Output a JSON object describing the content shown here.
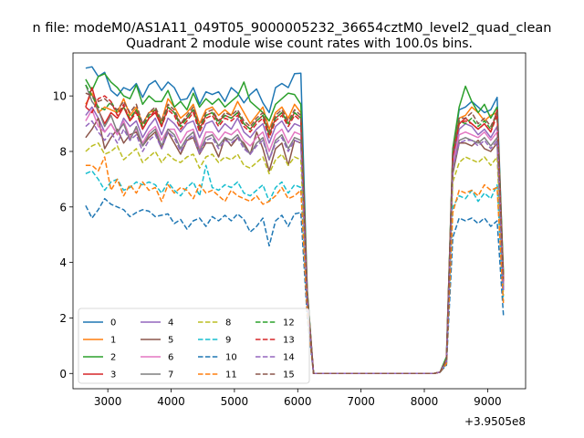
{
  "suptitle": "n file: modeM0/AS1A11_049T05_9000005232_36654cztM0_level2_quad_clean",
  "chart_data": {
    "type": "line",
    "title": "Quadrant 2 module wise count rates with 100.0s bins.",
    "xlabel": "",
    "ylabel": "",
    "x_offset_label": "+3.9505e8",
    "xlim": [
      2450,
      9600
    ],
    "ylim": [
      -0.55,
      11.55
    ],
    "xticks": [
      3000,
      4000,
      5000,
      6000,
      7000,
      8000,
      9000
    ],
    "yticks": [
      0,
      2,
      4,
      6,
      8,
      10
    ],
    "grid": false,
    "legend_position": "lower-left",
    "legend_columns": 4,
    "x": [
      2650,
      2750,
      2850,
      2950,
      3050,
      3150,
      3250,
      3350,
      3450,
      3550,
      3650,
      3750,
      3850,
      3950,
      4050,
      4150,
      4250,
      4350,
      4450,
      4550,
      4650,
      4750,
      4850,
      4950,
      5050,
      5150,
      5250,
      5350,
      5450,
      5550,
      5650,
      5750,
      5850,
      5950,
      6050,
      6150,
      6250,
      6350,
      6450,
      6550,
      6650,
      6750,
      6850,
      6950,
      7050,
      7150,
      7250,
      7350,
      7450,
      7550,
      7650,
      7750,
      7850,
      7950,
      8050,
      8150,
      8250,
      8350,
      8450,
      8550,
      8650,
      8750,
      8850,
      8950,
      9050,
      9150,
      9250
    ],
    "series": [
      {
        "name": "0",
        "color": "#1f77b4",
        "dash": "solid",
        "values": [
          11.0,
          11.05,
          10.7,
          10.85,
          10.2,
          10.0,
          10.3,
          10.2,
          10.45,
          9.95,
          10.4,
          10.55,
          10.2,
          10.5,
          10.3,
          9.85,
          9.9,
          10.3,
          9.7,
          10.15,
          10.05,
          10.15,
          9.8,
          10.3,
          10.1,
          9.75,
          10.05,
          10.25,
          9.75,
          9.4,
          10.3,
          10.45,
          10.3,
          10.8,
          10.82,
          3.0,
          0.0,
          0.0,
          0.0,
          0.0,
          0.0,
          0.0,
          0.0,
          0.0,
          0.0,
          0.0,
          0.0,
          0.0,
          0.0,
          0.0,
          0.0,
          0.0,
          0.0,
          0.0,
          0.0,
          0.0,
          0.05,
          0.6,
          8.0,
          9.5,
          9.6,
          9.8,
          9.6,
          9.4,
          9.5,
          9.95,
          3.5
        ]
      },
      {
        "name": "1",
        "color": "#ff7f0e",
        "dash": "solid",
        "values": [
          9.7,
          10.1,
          9.4,
          9.6,
          9.5,
          9.4,
          9.9,
          9.3,
          9.6,
          9.0,
          9.4,
          9.5,
          9.1,
          9.9,
          9.6,
          9.2,
          9.4,
          9.7,
          9.0,
          9.5,
          9.6,
          9.3,
          9.5,
          9.3,
          9.8,
          9.4,
          9.0,
          9.3,
          9.6,
          8.8,
          9.4,
          9.6,
          9.2,
          9.7,
          9.4,
          2.9,
          0.0,
          0.0,
          0.0,
          0.0,
          0.0,
          0.0,
          0.0,
          0.0,
          0.0,
          0.0,
          0.0,
          0.0,
          0.0,
          0.0,
          0.0,
          0.0,
          0.0,
          0.0,
          0.0,
          0.0,
          0.05,
          0.5,
          7.9,
          9.2,
          9.3,
          9.6,
          9.4,
          9.1,
          9.3,
          9.4,
          3.4
        ]
      },
      {
        "name": "2",
        "color": "#2ca02c",
        "dash": "solid",
        "values": [
          10.6,
          10.2,
          10.7,
          10.8,
          10.5,
          10.3,
          10.0,
          9.9,
          10.4,
          9.7,
          10.0,
          9.8,
          9.8,
          10.2,
          9.6,
          9.8,
          9.5,
          10.1,
          9.6,
          9.9,
          9.7,
          9.9,
          9.6,
          9.8,
          10.0,
          10.5,
          9.8,
          9.6,
          9.4,
          9.1,
          9.7,
          9.9,
          10.1,
          10.05,
          9.7,
          3.0,
          0.0,
          0.0,
          0.0,
          0.0,
          0.0,
          0.0,
          0.0,
          0.0,
          0.0,
          0.0,
          0.0,
          0.0,
          0.0,
          0.0,
          0.0,
          0.0,
          0.0,
          0.0,
          0.0,
          0.0,
          0.05,
          0.6,
          8.1,
          9.6,
          10.35,
          9.8,
          9.4,
          9.7,
          9.2,
          9.6,
          3.6
        ]
      },
      {
        "name": "3",
        "color": "#d62728",
        "dash": "solid",
        "values": [
          9.6,
          10.3,
          9.5,
          9.0,
          9.4,
          9.2,
          9.6,
          9.1,
          9.5,
          8.8,
          9.2,
          9.4,
          8.9,
          9.6,
          9.4,
          9.0,
          9.2,
          9.5,
          8.8,
          9.3,
          9.4,
          9.1,
          9.3,
          9.2,
          9.4,
          9.0,
          8.8,
          9.1,
          9.3,
          8.6,
          9.2,
          9.4,
          9.0,
          9.4,
          9.2,
          2.8,
          0.0,
          0.0,
          0.0,
          0.0,
          0.0,
          0.0,
          0.0,
          0.0,
          0.0,
          0.0,
          0.0,
          0.0,
          0.0,
          0.0,
          0.0,
          0.0,
          0.0,
          0.0,
          0.0,
          0.0,
          0.05,
          0.5,
          7.8,
          9.0,
          9.2,
          9.0,
          8.8,
          9.0,
          8.7,
          9.5,
          3.3
        ]
      },
      {
        "name": "4",
        "color": "#9467bd",
        "dash": "solid",
        "values": [
          9.3,
          9.6,
          9.2,
          8.7,
          9.0,
          8.6,
          9.2,
          8.9,
          9.1,
          8.5,
          8.9,
          9.2,
          8.6,
          9.2,
          9.0,
          8.7,
          9.0,
          9.1,
          8.5,
          9.0,
          9.1,
          8.7,
          9.0,
          8.8,
          9.2,
          8.7,
          8.5,
          8.8,
          9.0,
          8.3,
          8.9,
          9.1,
          8.7,
          9.0,
          8.9,
          2.7,
          0.0,
          0.0,
          0.0,
          0.0,
          0.0,
          0.0,
          0.0,
          0.0,
          0.0,
          0.0,
          0.0,
          0.0,
          0.0,
          0.0,
          0.0,
          0.0,
          0.0,
          0.0,
          0.0,
          0.0,
          0.05,
          0.5,
          7.6,
          8.8,
          9.0,
          8.9,
          8.6,
          8.8,
          8.5,
          8.9,
          3.2
        ]
      },
      {
        "name": "5",
        "color": "#8c564b",
        "dash": "solid",
        "values": [
          8.5,
          8.8,
          9.2,
          8.1,
          8.5,
          8.8,
          8.3,
          8.6,
          8.7,
          8.2,
          8.5,
          8.7,
          8.1,
          8.7,
          8.3,
          7.9,
          8.4,
          8.5,
          7.9,
          8.3,
          8.3,
          7.8,
          8.5,
          8.2,
          8.5,
          8.3,
          7.9,
          8.7,
          8.1,
          7.3,
          8.1,
          8.3,
          7.5,
          8.4,
          8.3,
          2.6,
          0.0,
          0.0,
          0.0,
          0.0,
          0.0,
          0.0,
          0.0,
          0.0,
          0.0,
          0.0,
          0.0,
          0.0,
          0.0,
          0.0,
          0.0,
          0.0,
          0.0,
          0.0,
          0.0,
          0.0,
          0.05,
          0.4,
          7.2,
          8.3,
          8.3,
          8.2,
          8.4,
          8.1,
          8.0,
          8.3,
          3.0
        ]
      },
      {
        "name": "6",
        "color": "#e377c2",
        "dash": "solid",
        "values": [
          9.1,
          9.5,
          8.9,
          8.7,
          9.0,
          8.6,
          9.1,
          8.5,
          8.8,
          8.3,
          8.7,
          8.9,
          8.4,
          8.8,
          8.8,
          8.3,
          8.7,
          8.8,
          8.1,
          8.7,
          8.7,
          8.4,
          8.7,
          8.6,
          8.8,
          8.4,
          8.2,
          8.5,
          8.7,
          8.0,
          8.6,
          8.8,
          8.3,
          8.7,
          8.6,
          2.7,
          0.0,
          0.0,
          0.0,
          0.0,
          0.0,
          0.0,
          0.0,
          0.0,
          0.0,
          0.0,
          0.0,
          0.0,
          0.0,
          0.0,
          0.0,
          0.0,
          0.0,
          0.0,
          0.0,
          0.0,
          0.05,
          0.45,
          7.5,
          8.6,
          8.7,
          8.6,
          8.5,
          8.7,
          8.4,
          8.7,
          3.2
        ]
      },
      {
        "name": "7",
        "color": "#7f7f7f",
        "dash": "solid",
        "values": [
          10.4,
          9.8,
          9.5,
          8.9,
          9.3,
          8.7,
          9.0,
          8.4,
          8.9,
          8.2,
          8.6,
          8.8,
          8.2,
          8.8,
          8.6,
          8.1,
          8.5,
          8.7,
          8.0,
          8.5,
          8.6,
          8.2,
          8.5,
          8.4,
          8.6,
          8.2,
          7.9,
          8.3,
          8.5,
          7.7,
          8.4,
          8.6,
          8.1,
          8.5,
          8.4,
          2.7,
          0.0,
          0.0,
          0.0,
          0.0,
          0.0,
          0.0,
          0.0,
          0.0,
          0.0,
          0.0,
          0.0,
          0.0,
          0.0,
          0.0,
          0.0,
          0.0,
          0.0,
          0.0,
          0.0,
          0.0,
          0.05,
          0.45,
          7.3,
          8.4,
          8.5,
          8.4,
          8.3,
          8.5,
          8.2,
          8.5,
          3.1
        ]
      },
      {
        "name": "8",
        "color": "#bcbd22",
        "dash": "dashed",
        "values": [
          8.0,
          8.2,
          8.3,
          7.9,
          8.0,
          8.2,
          7.7,
          7.9,
          8.1,
          7.6,
          7.8,
          8.0,
          7.6,
          7.9,
          7.7,
          7.6,
          7.8,
          7.9,
          7.4,
          7.8,
          7.9,
          7.6,
          7.8,
          7.7,
          7.9,
          7.5,
          7.4,
          7.6,
          7.8,
          7.2,
          7.7,
          7.9,
          7.5,
          7.8,
          7.7,
          2.4,
          0.0,
          0.0,
          0.0,
          0.0,
          0.0,
          0.0,
          0.0,
          0.0,
          0.0,
          0.0,
          0.0,
          0.0,
          0.0,
          0.0,
          0.0,
          0.0,
          0.0,
          0.0,
          0.0,
          0.0,
          0.05,
          0.4,
          6.9,
          7.6,
          7.8,
          7.7,
          7.6,
          7.8,
          7.5,
          7.8,
          2.8
        ]
      },
      {
        "name": "9",
        "color": "#17becf",
        "dash": "dashed",
        "values": [
          7.2,
          7.3,
          7.0,
          6.6,
          6.9,
          7.0,
          6.6,
          6.7,
          6.9,
          6.8,
          6.9,
          6.8,
          6.5,
          6.9,
          6.6,
          6.4,
          6.7,
          6.9,
          6.4,
          7.5,
          6.7,
          6.6,
          6.8,
          6.7,
          6.9,
          6.5,
          6.4,
          6.6,
          6.8,
          6.2,
          6.7,
          6.9,
          6.5,
          6.8,
          6.7,
          2.3,
          0.0,
          0.0,
          0.0,
          0.0,
          0.0,
          0.0,
          0.0,
          0.0,
          0.0,
          0.0,
          0.0,
          0.0,
          0.0,
          0.0,
          0.0,
          0.0,
          0.0,
          0.0,
          0.0,
          0.0,
          0.05,
          0.35,
          6.0,
          6.4,
          6.3,
          6.6,
          6.2,
          6.5,
          6.3,
          6.8,
          2.6
        ]
      },
      {
        "name": "10",
        "color": "#1f77b4",
        "dash": "dashed",
        "values": [
          6.05,
          5.6,
          5.9,
          6.3,
          6.1,
          6.0,
          5.9,
          5.65,
          5.8,
          5.9,
          5.85,
          5.65,
          5.7,
          5.75,
          5.4,
          5.55,
          5.2,
          5.5,
          5.6,
          5.3,
          5.65,
          5.5,
          5.7,
          5.5,
          5.75,
          5.55,
          5.1,
          5.3,
          5.6,
          4.6,
          5.5,
          5.7,
          5.3,
          5.75,
          5.8,
          2.0,
          0.0,
          0.0,
          0.0,
          0.0,
          0.0,
          0.0,
          0.0,
          0.0,
          0.0,
          0.0,
          0.0,
          0.0,
          0.0,
          0.0,
          0.0,
          0.0,
          0.0,
          0.0,
          0.0,
          0.0,
          0.05,
          0.3,
          4.9,
          5.6,
          5.5,
          5.6,
          5.4,
          5.6,
          5.3,
          5.5,
          2.1
        ]
      },
      {
        "name": "11",
        "color": "#ff7f0e",
        "dash": "dashed",
        "values": [
          7.5,
          7.5,
          7.3,
          7.8,
          6.6,
          7.0,
          6.4,
          6.8,
          6.5,
          6.9,
          6.6,
          6.7,
          6.2,
          6.8,
          6.5,
          6.7,
          6.6,
          6.3,
          6.8,
          6.5,
          6.6,
          6.4,
          6.2,
          6.6,
          6.4,
          6.3,
          6.2,
          6.4,
          6.1,
          6.2,
          6.4,
          6.7,
          6.3,
          6.4,
          6.6,
          2.2,
          0.0,
          0.0,
          0.0,
          0.0,
          0.0,
          0.0,
          0.0,
          0.0,
          0.0,
          0.0,
          0.0,
          0.0,
          0.0,
          0.0,
          0.0,
          0.0,
          0.0,
          0.0,
          0.0,
          0.0,
          0.05,
          0.35,
          5.8,
          6.6,
          6.5,
          6.6,
          6.4,
          6.8,
          6.6,
          6.7,
          2.5
        ]
      },
      {
        "name": "12",
        "color": "#2ca02c",
        "dash": "dashed",
        "values": [
          10.4,
          10.0,
          9.6,
          9.5,
          9.8,
          9.4,
          9.6,
          9.2,
          9.5,
          8.9,
          9.3,
          9.5,
          9.0,
          9.6,
          9.4,
          8.9,
          9.2,
          9.5,
          8.8,
          9.3,
          9.4,
          9.0,
          9.3,
          9.2,
          9.4,
          9.0,
          8.8,
          9.1,
          9.3,
          8.6,
          9.2,
          9.4,
          9.0,
          9.4,
          9.2,
          2.8,
          0.0,
          0.0,
          0.0,
          0.0,
          0.0,
          0.0,
          0.0,
          0.0,
          0.0,
          0.0,
          0.0,
          0.0,
          0.0,
          0.0,
          0.0,
          0.0,
          0.0,
          0.0,
          0.0,
          0.0,
          0.05,
          0.5,
          7.9,
          9.1,
          9.0,
          9.2,
          8.9,
          9.1,
          8.8,
          9.4,
          3.4
        ]
      },
      {
        "name": "13",
        "color": "#d62728",
        "dash": "dashed",
        "values": [
          9.6,
          9.4,
          9.9,
          10.0,
          9.8,
          9.3,
          9.7,
          9.1,
          9.4,
          8.8,
          9.2,
          9.5,
          8.9,
          9.5,
          9.3,
          8.8,
          9.1,
          9.4,
          8.7,
          9.2,
          9.3,
          8.9,
          9.2,
          9.1,
          9.3,
          8.9,
          8.7,
          9.0,
          9.2,
          8.5,
          9.1,
          9.3,
          8.9,
          9.3,
          9.1,
          2.8,
          0.0,
          0.0,
          0.0,
          0.0,
          0.0,
          0.0,
          0.0,
          0.0,
          0.0,
          0.0,
          0.0,
          0.0,
          0.0,
          0.0,
          0.0,
          0.0,
          0.0,
          0.0,
          0.0,
          0.0,
          0.05,
          0.5,
          7.8,
          9.0,
          9.1,
          9.0,
          8.8,
          9.0,
          8.7,
          9.3,
          3.3
        ]
      },
      {
        "name": "14",
        "color": "#9467bd",
        "dash": "dashed",
        "values": [
          8.9,
          9.1,
          8.7,
          8.4,
          8.7,
          8.3,
          8.8,
          8.4,
          8.6,
          8.0,
          8.4,
          8.6,
          8.1,
          8.7,
          8.5,
          8.0,
          8.4,
          8.6,
          7.9,
          8.4,
          8.5,
          8.1,
          8.4,
          8.3,
          8.5,
          8.1,
          7.9,
          8.2,
          8.4,
          7.7,
          8.3,
          8.5,
          8.0,
          8.4,
          8.3,
          2.6,
          0.0,
          0.0,
          0.0,
          0.0,
          0.0,
          0.0,
          0.0,
          0.0,
          0.0,
          0.0,
          0.0,
          0.0,
          0.0,
          0.0,
          0.0,
          0.0,
          0.0,
          0.0,
          0.0,
          0.0,
          0.05,
          0.45,
          7.4,
          8.3,
          8.4,
          8.4,
          8.2,
          8.4,
          8.1,
          8.4,
          3.0
        ]
      },
      {
        "name": "15",
        "color": "#8c564b",
        "dash": "dashed",
        "values": [
          10.1,
          10.0,
          9.8,
          9.9,
          9.7,
          9.5,
          9.8,
          9.4,
          9.7,
          9.0,
          9.4,
          9.6,
          9.1,
          9.7,
          9.5,
          9.0,
          9.3,
          9.6,
          8.9,
          9.4,
          9.5,
          9.1,
          9.4,
          9.3,
          9.5,
          9.1,
          8.9,
          9.2,
          9.4,
          8.7,
          9.3,
          9.5,
          9.1,
          9.5,
          9.3,
          2.9,
          0.0,
          0.0,
          0.0,
          0.0,
          0.0,
          0.0,
          0.0,
          0.0,
          0.0,
          0.0,
          0.0,
          0.0,
          0.0,
          0.0,
          0.0,
          0.0,
          0.0,
          0.0,
          0.0,
          0.0,
          0.05,
          0.5,
          8.0,
          9.2,
          9.2,
          9.4,
          9.0,
          9.2,
          8.9,
          9.4,
          3.4
        ]
      }
    ]
  }
}
